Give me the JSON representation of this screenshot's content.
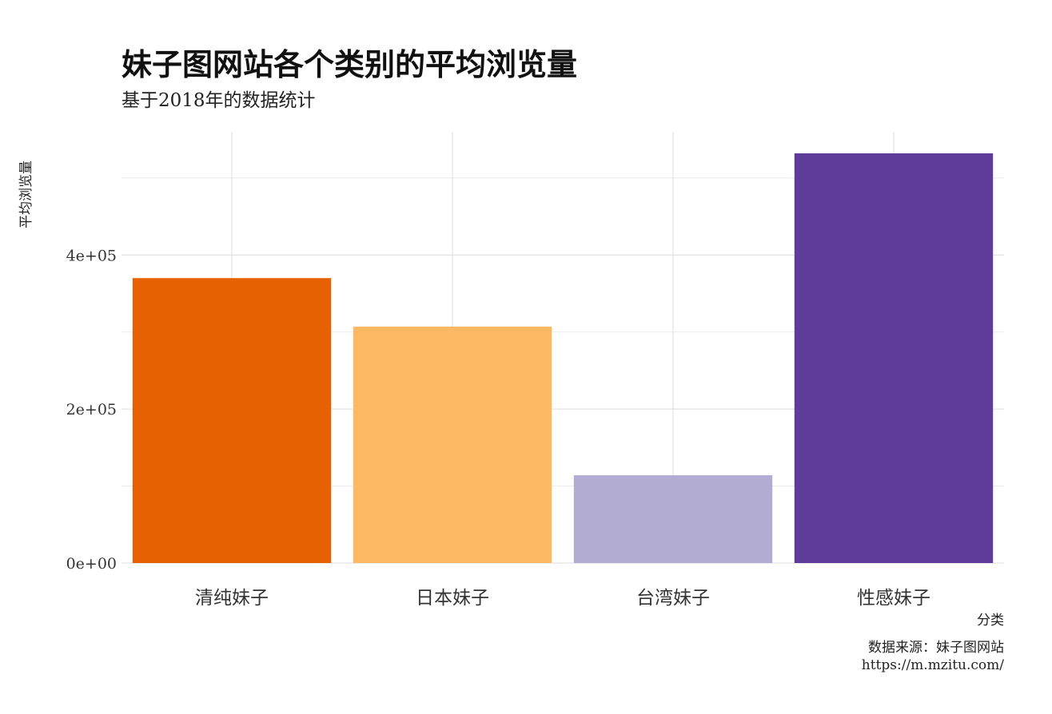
{
  "chart_data": {
    "type": "bar",
    "title": "妹子图网站各个类别的平均浏览量",
    "subtitle": "基于2018年的数据统计",
    "xlabel": "分类",
    "ylabel": "平均浏览量",
    "caption_line1": "数据来源：妹子图网站",
    "caption_line2": "https://m.mzitu.com/",
    "categories": [
      "清纯妹子",
      "日本妹子",
      "台湾妹子",
      "性感妹子"
    ],
    "values": [
      370000,
      307000,
      114000,
      532000
    ],
    "colors": [
      "#E66101",
      "#FDB863",
      "#B2ABD2",
      "#5E3C99"
    ],
    "y_ticks": [
      {
        "value": 0,
        "label": "0e+00"
      },
      {
        "value": 200000,
        "label": "2e+05"
      },
      {
        "value": 400000,
        "label": "4e+05"
      }
    ],
    "ylim": [
      0,
      560000
    ],
    "grid": true,
    "legend": "none"
  }
}
